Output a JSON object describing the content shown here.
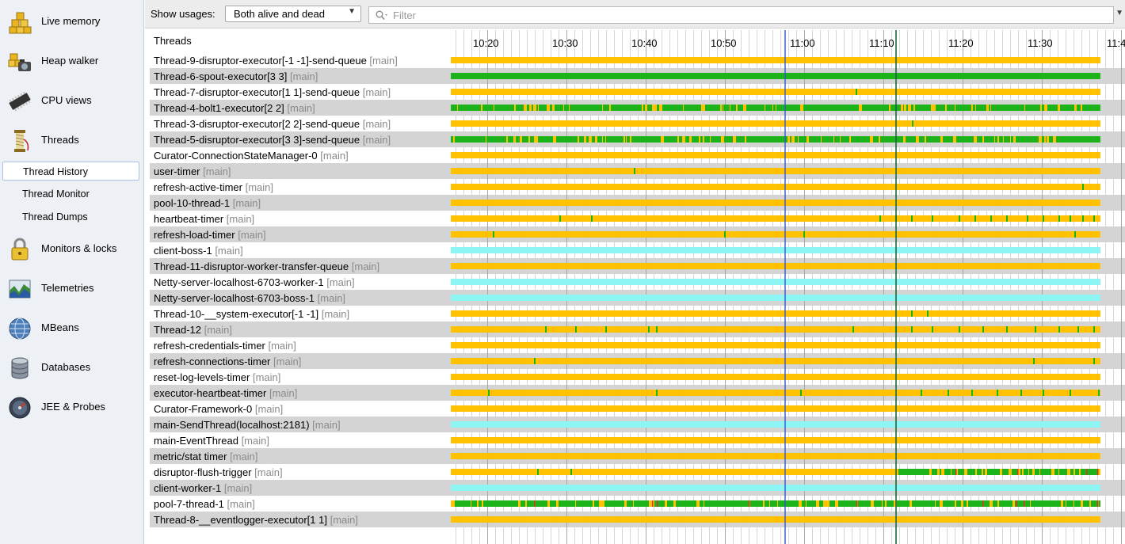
{
  "sidebar": {
    "items": [
      {
        "label": "Live memory",
        "icon": "live-memory-icon"
      },
      {
        "label": "Heap walker",
        "icon": "heap-walker-icon"
      },
      {
        "label": "CPU views",
        "icon": "cpu-views-icon"
      },
      {
        "label": "Threads",
        "icon": "threads-icon"
      },
      {
        "label": "Monitors & locks",
        "icon": "monitors-locks-icon"
      },
      {
        "label": "Telemetries",
        "icon": "telemetries-icon"
      },
      {
        "label": "MBeans",
        "icon": "mbeans-icon"
      },
      {
        "label": "Databases",
        "icon": "databases-icon"
      },
      {
        "label": "JEE & Probes",
        "icon": "jee-probes-icon"
      }
    ],
    "sub_items": [
      {
        "label": "Thread History",
        "selected": true
      },
      {
        "label": "Thread Monitor",
        "selected": false
      },
      {
        "label": "Thread Dumps",
        "selected": false
      }
    ]
  },
  "toolbar": {
    "usage_label": "Show usages:",
    "usage_value": "Both alive and dead",
    "filter_placeholder": "Filter"
  },
  "history": {
    "header": "Threads",
    "time_labels": [
      "10:20",
      "10:30",
      "10:40",
      "10:50",
      "11:00",
      "11:10",
      "11:20",
      "11:30",
      "11:4"
    ],
    "colors": {
      "runnable": "#1db31b",
      "waiting": "#ffc100",
      "net_io": "#8ef5f5",
      "blocked": "#e53020",
      "timeline_marker": "#3355cc",
      "now_marker": "#1a6b3a"
    },
    "threads": [
      {
        "name": "Thread-9-disruptor-executor[-1 -1]-send-queue",
        "group": "[main]"
      },
      {
        "name": "Thread-6-spout-executor[3 3]",
        "group": "[main]"
      },
      {
        "name": "Thread-7-disruptor-executor[1 1]-send-queue",
        "group": "[main]"
      },
      {
        "name": "Thread-4-bolt1-executor[2 2]",
        "group": "[main]"
      },
      {
        "name": "Thread-3-disruptor-executor[2 2]-send-queue",
        "group": "[main]"
      },
      {
        "name": "Thread-5-disruptor-executor[3 3]-send-queue",
        "group": "[main]"
      },
      {
        "name": "Curator-ConnectionStateManager-0",
        "group": "[main]"
      },
      {
        "name": "user-timer",
        "group": "[main]"
      },
      {
        "name": "refresh-active-timer",
        "group": "[main]"
      },
      {
        "name": "pool-10-thread-1",
        "group": "[main]"
      },
      {
        "name": "heartbeat-timer",
        "group": "[main]"
      },
      {
        "name": "refresh-load-timer",
        "group": "[main]"
      },
      {
        "name": "client-boss-1",
        "group": "[main]"
      },
      {
        "name": "Thread-11-disruptor-worker-transfer-queue",
        "group": "[main]"
      },
      {
        "name": "Netty-server-localhost-6703-worker-1",
        "group": "[main]"
      },
      {
        "name": "Netty-server-localhost-6703-boss-1",
        "group": "[main]"
      },
      {
        "name": "Thread-10-__system-executor[-1 -1]",
        "group": "[main]"
      },
      {
        "name": "Thread-12",
        "group": "[main]"
      },
      {
        "name": "refresh-credentials-timer",
        "group": "[main]"
      },
      {
        "name": "refresh-connections-timer",
        "group": "[main]"
      },
      {
        "name": "reset-log-levels-timer",
        "group": "[main]"
      },
      {
        "name": "executor-heartbeat-timer",
        "group": "[main]"
      },
      {
        "name": "Curator-Framework-0",
        "group": "[main]"
      },
      {
        "name": "main-SendThread(localhost:2181)",
        "group": "[main]"
      },
      {
        "name": "main-EventThread",
        "group": "[main]"
      },
      {
        "name": "metric/stat timer",
        "group": "[main]"
      },
      {
        "name": "disruptor-flush-trigger",
        "group": "[main]"
      },
      {
        "name": "client-worker-1",
        "group": "[main]"
      },
      {
        "name": "pool-7-thread-1",
        "group": "[main]"
      },
      {
        "name": "Thread-8-__eventlogger-executor[1 1]",
        "group": "[main]"
      }
    ]
  }
}
